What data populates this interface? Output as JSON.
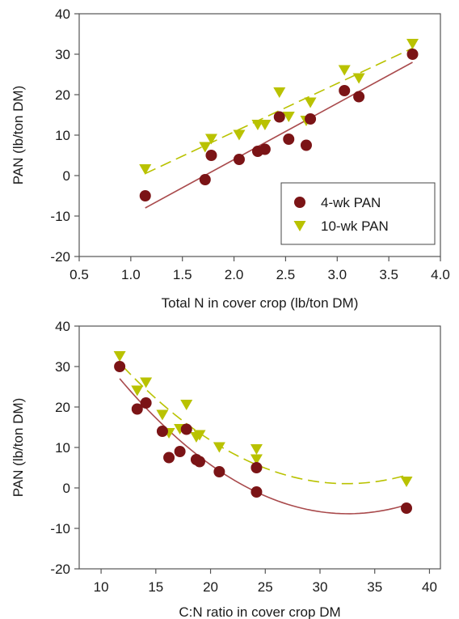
{
  "chart_data": [
    {
      "type": "scatter",
      "xlabel": "Total N in cover crop (lb/ton DM)",
      "ylabel": "PAN (lb/ton DM)",
      "xlim": [
        0.5,
        4.0
      ],
      "ylim": [
        -20,
        40
      ],
      "xticks": [
        "0.5",
        "1.0",
        "1.5",
        "2.0",
        "2.5",
        "3.0",
        "3.5",
        "4.0"
      ],
      "yticks": [
        "-20",
        "-10",
        "0",
        "10",
        "20",
        "30",
        "40"
      ],
      "grid": false,
      "legend": {
        "position": "bottom-right"
      },
      "series": [
        {
          "name": "4-wk PAN",
          "marker": "circle",
          "color": "#7b1416",
          "x": [
            1.14,
            1.72,
            1.78,
            2.05,
            2.23,
            2.3,
            2.44,
            2.53,
            2.7,
            2.74,
            3.07,
            3.21,
            3.73
          ],
          "y": [
            -5,
            -1,
            5,
            4,
            6,
            6.5,
            14.5,
            9,
            7.5,
            14,
            21,
            19.5,
            30
          ],
          "fit": {
            "type": "linear",
            "color": "#a94a4c",
            "dash": "solid",
            "x_range": [
              1.14,
              3.73
            ],
            "y_range": [
              -8,
              28
            ]
          }
        },
        {
          "name": "10-wk PAN",
          "marker": "triangle-down",
          "color": "#b9c200",
          "x": [
            1.14,
            1.72,
            1.78,
            2.05,
            2.23,
            2.3,
            2.44,
            2.53,
            2.7,
            2.74,
            3.07,
            3.21,
            3.73
          ],
          "y": [
            1.5,
            7,
            9,
            10,
            12.5,
            12.5,
            20.5,
            14.5,
            13.5,
            18,
            26,
            24,
            32.5
          ],
          "fit": {
            "type": "linear",
            "color": "#b9c200",
            "dash": "dashed",
            "x_range": [
              1.14,
              3.73
            ],
            "y_range": [
              0.5,
              31.5
            ]
          }
        }
      ]
    },
    {
      "type": "scatter",
      "xlabel": "C:N ratio in cover crop DM",
      "ylabel": "PAN (lb/ton DM)",
      "xlim": [
        8,
        41
      ],
      "ylim": [
        -20,
        40
      ],
      "xticks": [
        "10",
        "15",
        "20",
        "25",
        "30",
        "35",
        "40"
      ],
      "yticks": [
        "-20",
        "-10",
        "0",
        "10",
        "20",
        "30",
        "40"
      ],
      "grid": false,
      "series": [
        {
          "name": "4-wk PAN",
          "marker": "circle",
          "color": "#7b1416",
          "x": [
            11.7,
            13.3,
            14.1,
            15.6,
            16.2,
            17.2,
            17.8,
            18.7,
            19.0,
            20.8,
            24.2,
            24.2,
            37.9
          ],
          "y": [
            30,
            19.5,
            21,
            14,
            7.5,
            9,
            14.5,
            7,
            6.5,
            4,
            5,
            -1,
            -5
          ],
          "fit": {
            "type": "quadratic",
            "color": "#a94a4c",
            "dash": "solid",
            "coefficients": [
              0.0768,
              -5.0,
              75.0
            ],
            "x_range": [
              11.7,
              38.0
            ]
          }
        },
        {
          "name": "10-wk PAN",
          "marker": "triangle-down",
          "color": "#b9c200",
          "x": [
            11.7,
            13.3,
            14.1,
            15.6,
            16.2,
            17.2,
            17.8,
            18.7,
            19.0,
            20.8,
            24.2,
            24.2,
            37.9
          ],
          "y": [
            32.5,
            24,
            26,
            18,
            13.5,
            14.5,
            20.5,
            12.5,
            13,
            10,
            9.5,
            7,
            1.5
          ],
          "fit": {
            "type": "quadratic",
            "color": "#b9c200",
            "dash": "dashed",
            "coefficients": [
              0.0694,
              -4.5,
              74.0
            ],
            "x_range": [
              12.0,
              38.0
            ]
          }
        }
      ]
    }
  ]
}
